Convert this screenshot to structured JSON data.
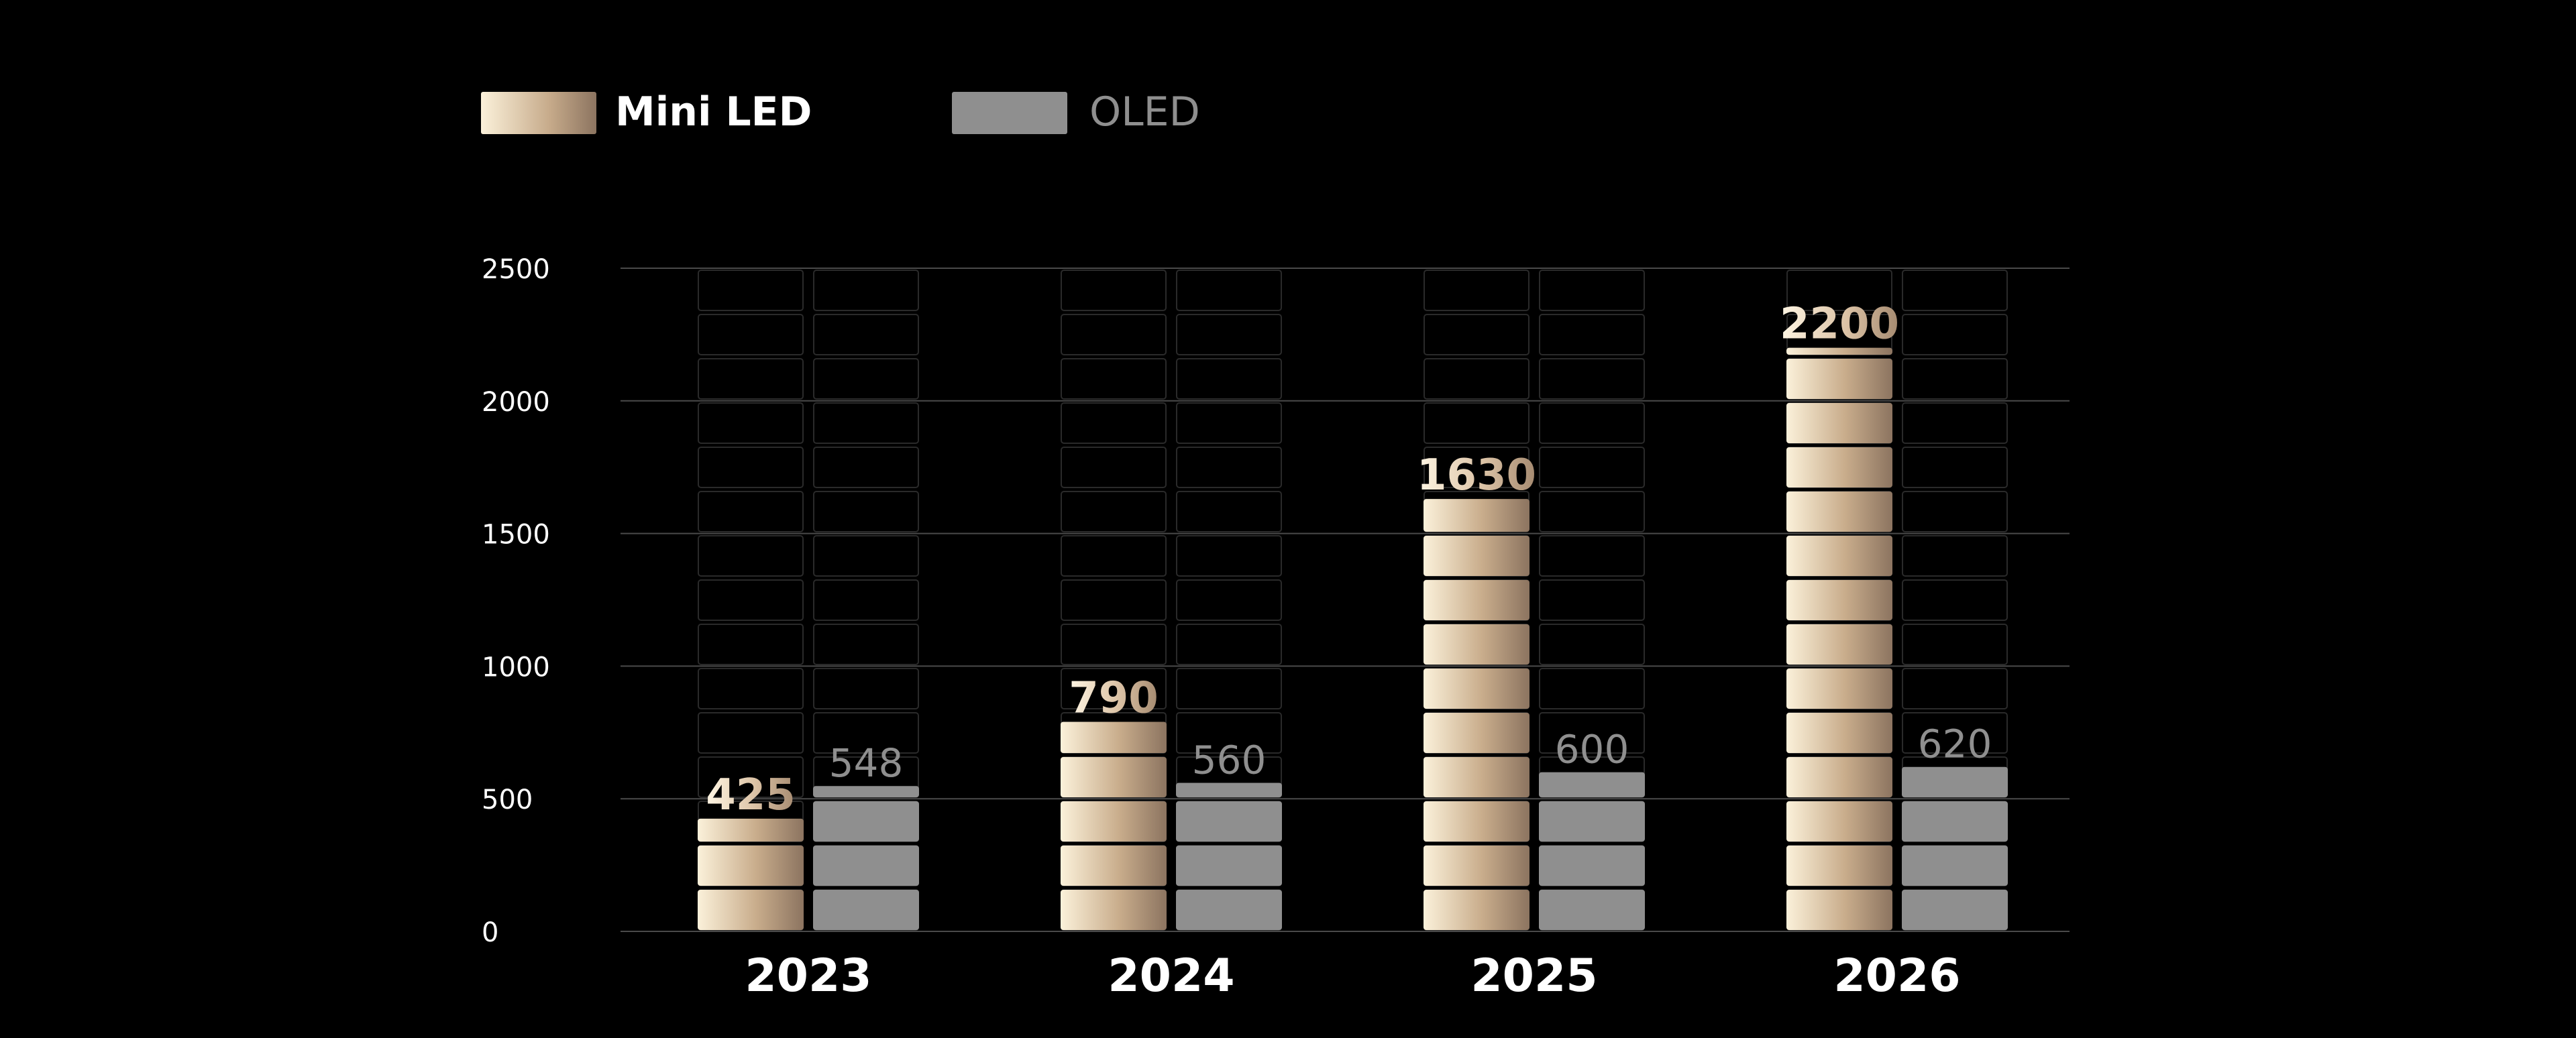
{
  "chart_data": {
    "type": "bar",
    "title": "",
    "xlabel": "",
    "ylabel": "",
    "categories": [
      "2023",
      "2024",
      "2025",
      "2026"
    ],
    "series": [
      {
        "name": "Mini LED",
        "values": [
          425,
          790,
          1630,
          2200
        ],
        "labels": [
          "425",
          "790",
          "1630",
          "2200"
        ]
      },
      {
        "name": "OLED",
        "values": [
          548,
          560,
          600,
          620
        ],
        "labels": [
          "548",
          "560",
          "600",
          "620"
        ]
      }
    ],
    "y_ticks": [
      "0",
      "500",
      "1000",
      "1500",
      "2000",
      "2500"
    ],
    "ylim": [
      0,
      2500
    ],
    "grid": true,
    "legend_position": "top-left",
    "colors": {
      "background": "#000000",
      "mini_led_light": "#fbf1da",
      "mini_led_mid": "#c6aa8a",
      "mini_led_dark": "#8c7460",
      "oled": "#8f8f8f",
      "gridline": "#4a4a4a",
      "empty_cell": "#2a2a2a"
    }
  },
  "legend": {
    "items": [
      {
        "label": "Mini LED"
      },
      {
        "label": "OLED"
      }
    ]
  }
}
